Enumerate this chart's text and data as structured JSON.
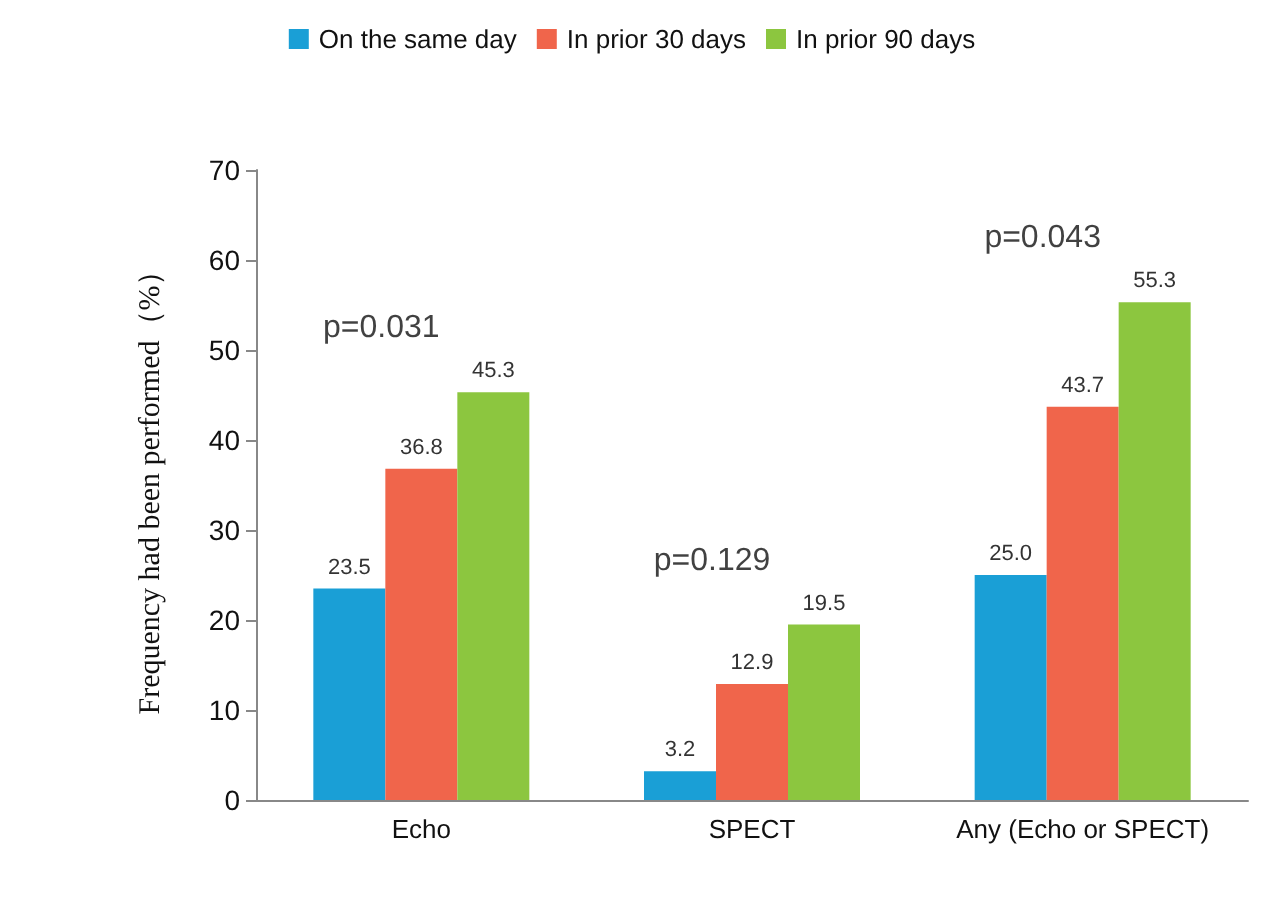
{
  "chart_data": {
    "type": "bar",
    "ylabel": "Frequency had been performed（%）",
    "categories": [
      "Echo",
      "SPECT",
      "Any (Echo or SPECT)"
    ],
    "series": [
      {
        "name": "On the same day",
        "color": "#1a9fd6",
        "values": [
          23.5,
          3.2,
          25.0
        ],
        "value_labels": [
          "23.5",
          "3.2",
          "25.0"
        ]
      },
      {
        "name": "In prior 30 days",
        "color": "#f0654b",
        "values": [
          36.8,
          12.9,
          43.7
        ],
        "value_labels": [
          "36.8",
          "12.9",
          "43.7"
        ]
      },
      {
        "name": "In prior 90 days",
        "color": "#8cc63f",
        "values": [
          45.3,
          19.5,
          55.3
        ],
        "value_labels": [
          "45.3",
          "19.5",
          "55.3"
        ]
      }
    ],
    "ylim": [
      0,
      70
    ],
    "yticks": [
      0,
      10,
      20,
      30,
      40,
      50,
      60,
      70
    ],
    "grid": false,
    "legend": "top",
    "annotations": [
      "p=0.031",
      "p=0.129",
      "p=0.043"
    ]
  }
}
